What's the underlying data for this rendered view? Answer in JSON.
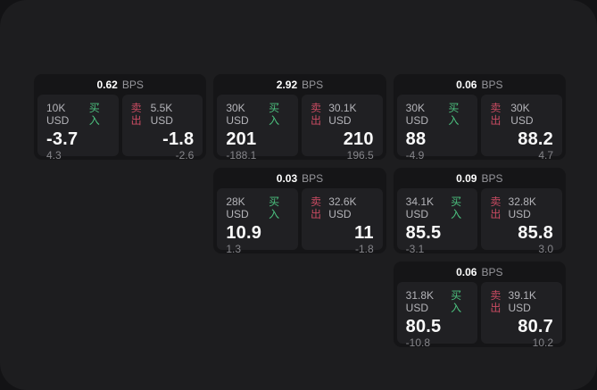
{
  "unit_label": "BPS",
  "buy_label": "买入",
  "sell_label": "卖出",
  "colors": {
    "page_bg": "#131315",
    "panel_bg": "#1d1d1f",
    "card_bg": "#151517",
    "cell_bg": "#202023",
    "buy_accent": "#4cc27f",
    "sell_accent": "#c94b62"
  },
  "cards": [
    {
      "row": 1,
      "col": 1,
      "bps": "0.62",
      "buy": {
        "amount": "10K USD",
        "price": "-3.7",
        "delta": "4.3"
      },
      "sell": {
        "amount": "5.5K USD",
        "price": "-1.8",
        "delta": "-2.6"
      }
    },
    {
      "row": 1,
      "col": 2,
      "bps": "2.92",
      "buy": {
        "amount": "30K USD",
        "price": "201",
        "delta": "-188.1"
      },
      "sell": {
        "amount": "30.1K USD",
        "price": "210",
        "delta": "196.5"
      }
    },
    {
      "row": 1,
      "col": 3,
      "bps": "0.06",
      "buy": {
        "amount": "30K USD",
        "price": "88",
        "delta": "-4.9"
      },
      "sell": {
        "amount": "30K USD",
        "price": "88.2",
        "delta": "4.7"
      }
    },
    {
      "row": 2,
      "col": 2,
      "bps": "0.03",
      "buy": {
        "amount": "28K USD",
        "price": "10.9",
        "delta": "1.3"
      },
      "sell": {
        "amount": "32.6K USD",
        "price": "11",
        "delta": "-1.8"
      }
    },
    {
      "row": 2,
      "col": 3,
      "bps": "0.09",
      "buy": {
        "amount": "34.1K USD",
        "price": "85.5",
        "delta": "-3.1"
      },
      "sell": {
        "amount": "32.8K USD",
        "price": "85.8",
        "delta": "3.0"
      }
    },
    {
      "row": 3,
      "col": 3,
      "bps": "0.06",
      "buy": {
        "amount": "31.8K USD",
        "price": "80.5",
        "delta": "-10.8"
      },
      "sell": {
        "amount": "39.1K USD",
        "price": "80.7",
        "delta": "10.2"
      }
    }
  ]
}
